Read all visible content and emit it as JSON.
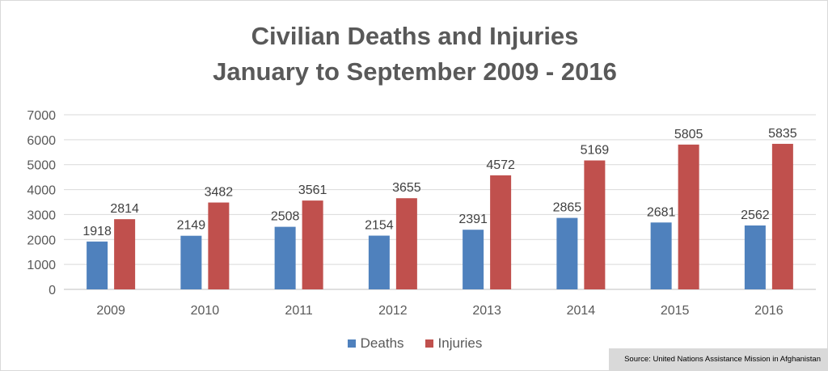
{
  "chart_data": {
    "type": "bar",
    "title_line1": "Civilian Deaths and Injuries",
    "title_line2": "January to September 2009 - 2016",
    "categories": [
      "2009",
      "2010",
      "2011",
      "2012",
      "2013",
      "2014",
      "2015",
      "2016"
    ],
    "series": [
      {
        "name": "Deaths",
        "color": "#4f81bd",
        "values": [
          1918,
          2149,
          2508,
          2154,
          2391,
          2865,
          2681,
          2562
        ]
      },
      {
        "name": "Injuries",
        "color": "#c0504d",
        "values": [
          2814,
          3482,
          3561,
          3655,
          4572,
          5169,
          5805,
          5835
        ]
      }
    ],
    "ylim": [
      0,
      7000
    ],
    "yticks": [
      "0",
      "1000",
      "2000",
      "3000",
      "4000",
      "5000",
      "6000",
      "7000"
    ],
    "grid": true,
    "legend_position": "bottom",
    "source": "Source: United Nations Assistance Mission in Afghanistan"
  }
}
